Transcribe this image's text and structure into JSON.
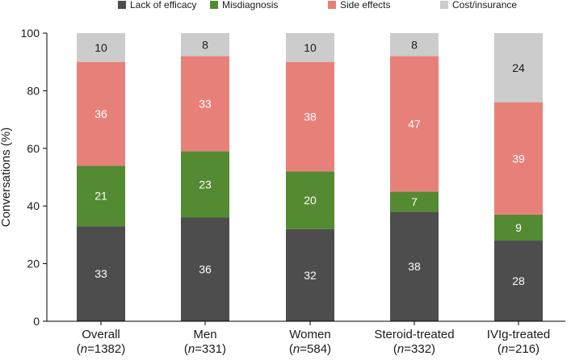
{
  "chart_data": {
    "type": "bar",
    "stacked": true,
    "ylabel": "Conversations (%)",
    "ylim": [
      0,
      100
    ],
    "yticks": [
      0,
      20,
      40,
      60,
      80,
      100
    ],
    "legend_position": "top",
    "categories": [
      {
        "name": "Overall",
        "n_prefix": "(",
        "n_label": "n",
        "n_value": "=1382)"
      },
      {
        "name": "Men",
        "n_prefix": "(",
        "n_label": "n",
        "n_value": "=331)"
      },
      {
        "name": "Women",
        "n_prefix": "(",
        "n_label": "n",
        "n_value": "=584)"
      },
      {
        "name": "Steroid-treated",
        "n_prefix": "(",
        "n_label": "n",
        "n_value": "=332)"
      },
      {
        "name": "IVIg-treated",
        "n_prefix": "(",
        "n_label": "n",
        "n_value": "=216)"
      }
    ],
    "series": [
      {
        "name": "Lack of efficacy",
        "color": "#4d4d4d",
        "label_color": "#ffffff",
        "values": [
          33,
          36,
          32,
          38,
          28
        ]
      },
      {
        "name": "Misdiagnosis",
        "color": "#548a32",
        "label_color": "#ffffff",
        "values": [
          21,
          23,
          20,
          7,
          9
        ]
      },
      {
        "name": "Side effects",
        "color": "#e8807a",
        "label_color": "#ffffff",
        "values": [
          36,
          33,
          38,
          47,
          39
        ]
      },
      {
        "name": "Cost/insurance",
        "color": "#cccccc",
        "label_color": "#1a1a1a",
        "values": [
          10,
          8,
          10,
          8,
          24
        ]
      }
    ]
  }
}
